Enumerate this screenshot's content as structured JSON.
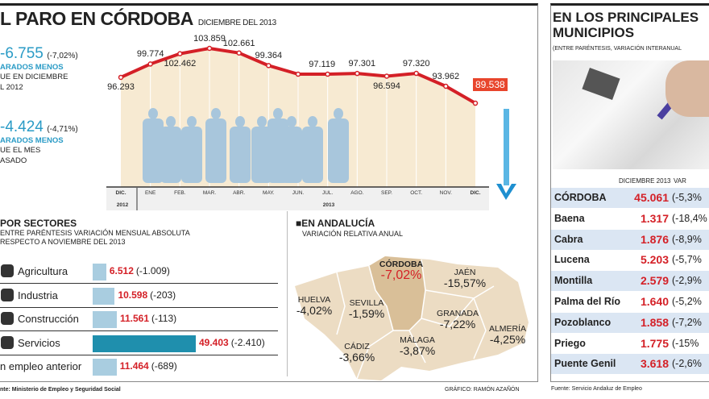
{
  "header": {
    "title": "L PARO EN CÓRDOBA",
    "subtitle": "DICIEMBRE DEL 2013"
  },
  "summary": [
    {
      "value": "-6.755",
      "pct": "(-7,02%)",
      "label": "ARADOS MENOS",
      "line1": "UE EN DICIEMBRE",
      "line2": "L 2012"
    },
    {
      "value": "-4.424",
      "pct": "(-4,71%)",
      "label": "ARADOS MENOS",
      "line1": "UE EL MES",
      "line2": "ASADO"
    }
  ],
  "chart_data": [
    {
      "type": "line",
      "categories": [
        "DIC.",
        "ENE",
        "FEB.",
        "MAR.",
        "ABR.",
        "MAY.",
        "JUN.",
        "JUL.",
        "AGO.",
        "SEP.",
        "OCT.",
        "NOV.",
        "DIC."
      ],
      "year_labels": [
        "2012",
        "2013"
      ],
      "values": [
        96293,
        99774,
        102462,
        103859,
        102661,
        99364,
        97119,
        97119,
        97301,
        96594,
        97320,
        93962,
        89538
      ],
      "labels": [
        "96.293",
        "99.774",
        "102.462",
        "103.859",
        "102.661",
        "99.364",
        "",
        "97.119",
        "97.301",
        "96.594",
        "97.320",
        "93.962",
        "89.538"
      ],
      "line_color": "#d42027",
      "highlight_color": "#e8452c"
    },
    {
      "type": "bar",
      "title": "POR SECTORES",
      "subtitle1": "ENTRE PARÉNTESIS VARIACIÓN MENSUAL ABSOLUTA",
      "subtitle2": "RESPECTO A NOVIEMBRE DEL 2013",
      "categories": [
        "Agricultura",
        "Industria",
        "Construcción",
        "Servicios",
        "n empleo anterior"
      ],
      "values": [
        6512,
        10598,
        11561,
        49403,
        11464
      ],
      "value_labels": [
        "6.512",
        "10.598",
        "11.561",
        "49.403",
        "11.464"
      ],
      "changes": [
        "(-1.009)",
        "(-203)",
        "(-113)",
        "(-2.410)",
        "(-689)"
      ],
      "bar_color": "#a9cde0",
      "max_color": "#1f8fad"
    }
  ],
  "map": {
    "title": "EN ANDALUCÍA",
    "subtitle": "VARIACIÓN RELATIVA ANUAL",
    "provinces": [
      {
        "name": "CÓRDOBA",
        "value": "-7,02%"
      },
      {
        "name": "JAÉN",
        "value": "-15,57%"
      },
      {
        "name": "HUELVA",
        "value": "-4,02%"
      },
      {
        "name": "SEVILLA",
        "value": "-1,59%"
      },
      {
        "name": "GRANADA",
        "value": "-7,22%"
      },
      {
        "name": "ALMERÍA",
        "value": "-4,25%"
      },
      {
        "name": "CÁDIZ",
        "value": "-3,66%"
      },
      {
        "name": "MÁLAGA",
        "value": "-3,87%"
      }
    ]
  },
  "footer": {
    "source": "nte: Ministerio de Empleo y Seguridad Social",
    "credit": "GRÁFICO: RAMÓN AZAÑÓN"
  },
  "municipios": {
    "title1": "EN LOS PRINCIPALES",
    "title2": "MUNICIPIOS",
    "subtitle": "(ENTRE PARÉNTESIS, VARIACIÓN INTERANUAL",
    "col1": "DICIEMBRE 2013",
    "col2": "VAR",
    "rows": [
      {
        "name": "CÓRDOBA",
        "value": "45.061",
        "var": "(-5,3%"
      },
      {
        "name": "Baena",
        "value": "1.317",
        "var": "(-18,4%"
      },
      {
        "name": "Cabra",
        "value": "1.876",
        "var": "(-8,9%"
      },
      {
        "name": "Lucena",
        "value": "5.203",
        "var": "(-5,7%"
      },
      {
        "name": "Montilla",
        "value": "2.579",
        "var": "(-2,9%"
      },
      {
        "name": "Palma del Río",
        "value": "1.640",
        "var": "(-5,2%"
      },
      {
        "name": "Pozoblanco",
        "value": "1.858",
        "var": "(-7,2%"
      },
      {
        "name": "Priego",
        "value": "1.775",
        "var": "(-15%"
      },
      {
        "name": "Puente Genil",
        "value": "3.618",
        "var": "(-2,6%"
      }
    ],
    "source": "Fuente: Servicio Andaluz de Empleo"
  }
}
